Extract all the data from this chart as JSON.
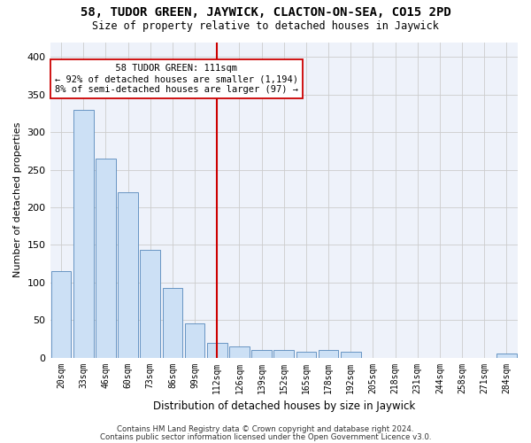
{
  "title": "58, TUDOR GREEN, JAYWICK, CLACTON-ON-SEA, CO15 2PD",
  "subtitle": "Size of property relative to detached houses in Jaywick",
  "xlabel": "Distribution of detached houses by size in Jaywick",
  "ylabel": "Number of detached properties",
  "bar_color": "#cce0f5",
  "bar_edge_color": "#5588bb",
  "bins": [
    "20sqm",
    "33sqm",
    "46sqm",
    "60sqm",
    "73sqm",
    "86sqm",
    "99sqm",
    "112sqm",
    "126sqm",
    "139sqm",
    "152sqm",
    "165sqm",
    "178sqm",
    "192sqm",
    "205sqm",
    "218sqm",
    "231sqm",
    "244sqm",
    "258sqm",
    "271sqm",
    "284sqm"
  ],
  "values": [
    115,
    330,
    265,
    220,
    143,
    93,
    45,
    20,
    15,
    10,
    10,
    8,
    10,
    8,
    0,
    0,
    0,
    0,
    0,
    0,
    5
  ],
  "marker_label": "58 TUDOR GREEN: 111sqm",
  "annotation_line1": "← 92% of detached houses are smaller (1,194)",
  "annotation_line2": "8% of semi-detached houses are larger (97) →",
  "vline_color": "#cc0000",
  "annotation_box_facecolor": "#ffffff",
  "annotation_box_edgecolor": "#cc0000",
  "footer1": "Contains HM Land Registry data © Crown copyright and database right 2024.",
  "footer2": "Contains public sector information licensed under the Open Government Licence v3.0.",
  "ylim": [
    0,
    420
  ],
  "yticks": [
    0,
    50,
    100,
    150,
    200,
    250,
    300,
    350,
    400
  ],
  "grid_color": "#cccccc",
  "background_color": "#eef2fa"
}
